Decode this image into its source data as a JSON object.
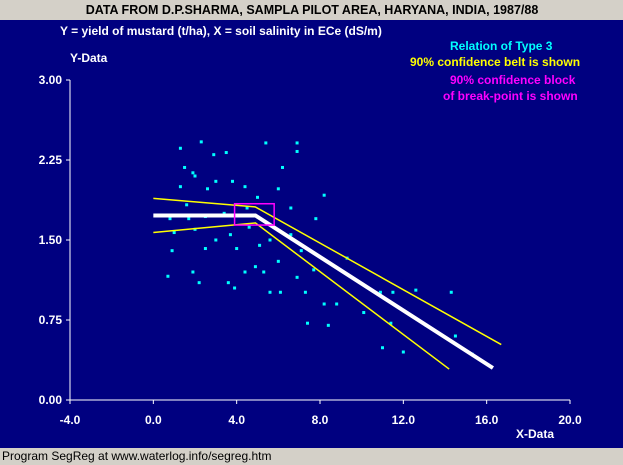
{
  "colors": {
    "frame": "#d4d0c8",
    "plot_bg": "#000080",
    "axis": "#ffffff",
    "points": "#00ffff",
    "fit_line": "#ffffff",
    "belt": "#ffff00",
    "block": "#ff00ff",
    "title_text": "#000000"
  },
  "footer": "Program SegReg at www.waterlog.info/segreg.htm",
  "chart_data": {
    "type": "scatter",
    "title": "DATA FROM D.P.SHARMA, SAMPLA PILOT AREA, HARYANA, INDIA, 1987/88",
    "subtitle": "Y = yield of mustard (t/ha), X = soil salinity in ECe (dS/m)",
    "ylabel": "Y-Data",
    "xlabel": "X-Data",
    "xlim": [
      -4.0,
      20.0
    ],
    "ylim": [
      0.0,
      3.0
    ],
    "x_ticks": [
      "-4.0",
      "0.0",
      "4.0",
      "8.0",
      "12.0",
      "16.0",
      "20.0"
    ],
    "y_ticks": [
      "0.00",
      "0.75",
      "1.50",
      "2.25",
      "3.00"
    ],
    "annotations": {
      "relation": "Relation of Type 3",
      "belt": "90% confidence belt is shown",
      "block_line1": "90% confidence block",
      "block_line2": "of break-point is shown"
    },
    "points": [
      [
        1.3,
        2.36
      ],
      [
        2.3,
        2.42
      ],
      [
        3.5,
        2.32
      ],
      [
        2.9,
        2.3
      ],
      [
        5.4,
        2.41
      ],
      [
        6.9,
        2.41
      ],
      [
        6.9,
        2.33
      ],
      [
        1.5,
        2.18
      ],
      [
        1.9,
        2.13
      ],
      [
        2.0,
        2.1
      ],
      [
        3.0,
        2.05
      ],
      [
        3.8,
        2.05
      ],
      [
        6.2,
        2.18
      ],
      [
        1.3,
        2.0
      ],
      [
        2.6,
        1.98
      ],
      [
        4.4,
        2.0
      ],
      [
        6.0,
        1.98
      ],
      [
        8.2,
        1.92
      ],
      [
        1.6,
        1.83
      ],
      [
        1.7,
        1.7
      ],
      [
        2.5,
        1.72
      ],
      [
        3.4,
        1.75
      ],
      [
        4.5,
        1.8
      ],
      [
        5.0,
        1.9
      ],
      [
        6.6,
        1.8
      ],
      [
        7.8,
        1.7
      ],
      [
        0.8,
        1.7
      ],
      [
        1.0,
        1.57
      ],
      [
        2.0,
        1.6
      ],
      [
        3.0,
        1.5
      ],
      [
        3.7,
        1.55
      ],
      [
        4.6,
        1.62
      ],
      [
        5.6,
        1.5
      ],
      [
        6.6,
        1.55
      ],
      [
        0.9,
        1.4
      ],
      [
        1.9,
        1.2
      ],
      [
        2.5,
        1.42
      ],
      [
        4.0,
        1.42
      ],
      [
        5.1,
        1.45
      ],
      [
        6.0,
        1.3
      ],
      [
        7.1,
        1.4
      ],
      [
        7.7,
        1.22
      ],
      [
        9.3,
        1.33
      ],
      [
        0.7,
        1.16
      ],
      [
        2.2,
        1.1
      ],
      [
        3.6,
        1.1
      ],
      [
        4.4,
        1.2
      ],
      [
        5.3,
        1.2
      ],
      [
        6.9,
        1.15
      ],
      [
        3.9,
        1.05
      ],
      [
        5.6,
        1.01
      ],
      [
        6.1,
        1.01
      ],
      [
        7.3,
        1.01
      ],
      [
        8.2,
        0.9
      ],
      [
        8.8,
        0.9
      ],
      [
        10.9,
        1.01
      ],
      [
        11.5,
        1.01
      ],
      [
        12.6,
        1.03
      ],
      [
        14.3,
        1.01
      ],
      [
        4.9,
        1.25
      ],
      [
        7.4,
        0.72
      ],
      [
        8.4,
        0.7
      ],
      [
        10.1,
        0.82
      ],
      [
        11.4,
        0.72
      ],
      [
        13.1,
        0.7
      ],
      [
        14.5,
        0.6
      ],
      [
        11.0,
        0.49
      ],
      [
        12.0,
        0.45
      ],
      [
        15.3,
        0.43
      ]
    ],
    "fit_line": [
      [
        0.0,
        1.73
      ],
      [
        4.9,
        1.73
      ],
      [
        16.3,
        0.3
      ]
    ],
    "belt_upper": [
      [
        0.0,
        1.89
      ],
      [
        4.9,
        1.81
      ],
      [
        16.7,
        0.52
      ]
    ],
    "belt_lower": [
      [
        0.0,
        1.57
      ],
      [
        4.9,
        1.66
      ],
      [
        14.2,
        0.29
      ]
    ],
    "break_block": {
      "x": [
        3.9,
        5.8
      ],
      "y": [
        1.64,
        1.84
      ]
    }
  }
}
